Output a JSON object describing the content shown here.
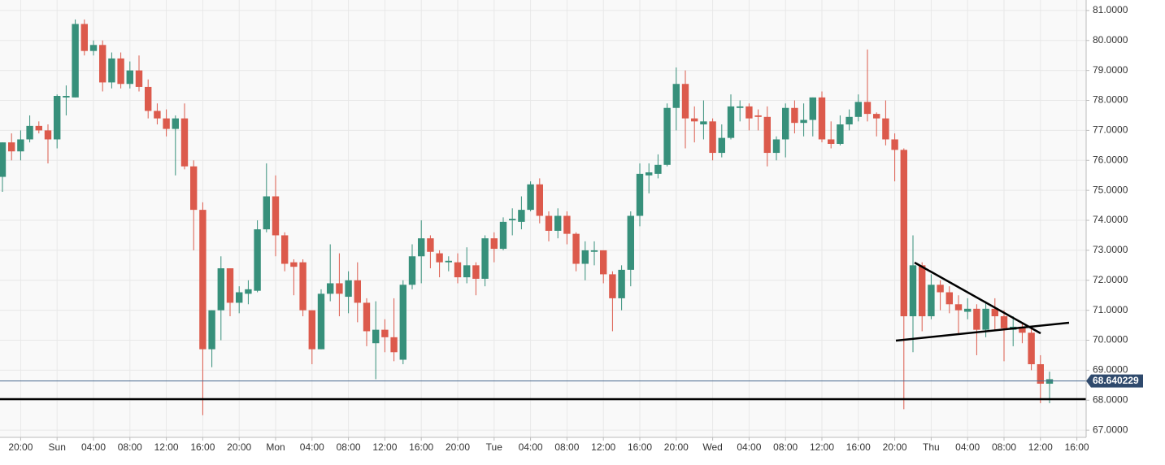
{
  "chart_data": {
    "type": "candlestick",
    "categories": [
      null,
      null,
      "20:00",
      null,
      null,
      null,
      "Sun",
      null,
      null,
      null,
      "04:00",
      null,
      null,
      null,
      "08:00",
      null,
      null,
      null,
      "12:00",
      null,
      null,
      null,
      "16:00",
      null,
      null,
      null,
      "20:00",
      null,
      null,
      null,
      "Mon",
      null,
      null,
      null,
      "04:00",
      null,
      null,
      null,
      "08:00",
      null,
      null,
      null,
      "12:00",
      null,
      null,
      null,
      "16:00",
      null,
      null,
      null,
      "20:00",
      null,
      null,
      null,
      "Tue",
      null,
      null,
      null,
      "04:00",
      null,
      null,
      null,
      "08:00",
      null,
      null,
      null,
      "12:00",
      null,
      null,
      null,
      "16:00",
      null,
      null,
      null,
      "20:00",
      null,
      null,
      null,
      "Wed",
      null,
      null,
      null,
      "04:00",
      null,
      null,
      null,
      "08:00",
      null,
      null,
      null,
      "12:00",
      null,
      null,
      null,
      "16:00",
      null,
      null,
      null,
      "20:00",
      null,
      null,
      null,
      "Thu",
      null,
      null,
      null,
      "04:00",
      null,
      null,
      null,
      "08:00",
      null,
      null,
      null,
      "12:00",
      null,
      null,
      null,
      "16:00"
    ],
    "open": [
      75.45,
      76.6,
      76.3,
      76.7,
      77.15,
      77.0,
      76.7,
      78.1,
      78.1,
      80.55,
      79.65,
      79.85,
      78.6,
      79.4,
      78.55,
      79.0,
      78.45,
      77.65,
      77.4,
      77.05,
      77.4,
      75.8,
      74.35,
      69.7,
      71.0,
      72.4,
      71.25,
      71.55,
      71.65,
      73.7,
      74.8,
      73.5,
      72.6,
      72.6,
      71.0,
      69.7,
      71.55,
      71.9,
      71.45,
      72.0,
      71.25,
      69.9,
      70.35,
      70.1,
      69.35,
      71.85,
      72.8,
      73.4,
      72.9,
      72.6,
      72.6,
      72.1,
      72.5,
      72.05,
      73.4,
      73.05,
      74.0,
      73.95,
      74.35,
      75.2,
      74.15,
      73.65,
      74.15,
      73.55,
      72.55,
      72.95,
      73.0,
      72.2,
      71.4,
      72.35,
      74.15,
      75.5,
      75.55,
      75.85,
      77.75,
      78.55,
      77.4,
      77.2,
      77.3,
      76.25,
      76.75,
      77.75,
      77.8,
      77.5,
      77.45,
      76.25,
      76.7,
      77.75,
      77.25,
      77.35,
      78.1,
      76.7,
      76.55,
      77.2,
      77.45,
      77.95,
      77.55,
      77.4,
      76.7,
      76.35,
      70.8,
      72.5,
      70.8,
      71.85,
      71.6,
      71.2,
      70.95,
      71.05,
      70.35,
      71.05,
      70.8,
      70.35,
      70.45,
      70.25,
      69.2,
      68.55,
      null,
      null,
      null
    ],
    "high": [
      76.6,
      76.9,
      77.0,
      77.5,
      77.3,
      77.2,
      78.2,
      78.5,
      80.7,
      80.7,
      80.0,
      80.0,
      79.6,
      79.6,
      79.3,
      79.5,
      78.7,
      77.9,
      77.7,
      77.5,
      77.9,
      76.0,
      74.6,
      71.0,
      72.8,
      72.4,
      71.8,
      72.0,
      74.0,
      75.9,
      75.5,
      73.6,
      72.7,
      72.7,
      71.0,
      71.7,
      73.2,
      72.9,
      72.3,
      72.6,
      71.4,
      71.3,
      70.7,
      71.4,
      72.0,
      73.2,
      74.0,
      73.5,
      73.0,
      72.8,
      72.9,
      73.1,
      72.6,
      73.5,
      73.6,
      74.1,
      74.4,
      74.8,
      75.3,
      75.4,
      74.3,
      74.4,
      74.3,
      73.6,
      73.3,
      73.3,
      73.0,
      72.3,
      72.5,
      74.3,
      75.9,
      75.9,
      76.2,
      77.9,
      79.1,
      79.0,
      77.8,
      78.0,
      77.4,
      77.2,
      78.2,
      78.0,
      77.9,
      77.7,
      77.8,
      76.8,
      77.9,
      78.0,
      77.9,
      78.1,
      78.3,
      77.3,
      77.5,
      77.7,
      78.2,
      79.7,
      77.6,
      78.0,
      76.9,
      76.4,
      73.5,
      72.6,
      72.2,
      72.0,
      71.8,
      71.5,
      71.4,
      71.2,
      71.3,
      71.4,
      71.0,
      70.8,
      70.6,
      70.4,
      69.5,
      68.95,
      null,
      null,
      null
    ],
    "low": [
      74.95,
      76.0,
      76.0,
      76.6,
      76.9,
      75.9,
      76.4,
      77.5,
      78.1,
      79.5,
      79.5,
      78.3,
      78.4,
      78.4,
      78.4,
      78.3,
      77.4,
      77.2,
      76.8,
      75.5,
      75.7,
      73.0,
      67.5,
      69.1,
      70.0,
      70.8,
      70.9,
      71.2,
      71.6,
      73.6,
      72.8,
      72.3,
      71.5,
      70.8,
      69.2,
      69.7,
      71.3,
      70.8,
      70.9,
      70.6,
      69.8,
      68.7,
      69.6,
      69.3,
      69.2,
      71.7,
      71.9,
      72.4,
      72.1,
      72.3,
      71.9,
      71.9,
      71.5,
      71.8,
      72.6,
      73.0,
      73.5,
      73.7,
      74.3,
      73.9,
      73.3,
      73.4,
      73.2,
      72.3,
      72.0,
      72.5,
      71.9,
      70.3,
      71.0,
      71.8,
      73.8,
      74.9,
      75.4,
      75.8,
      77.0,
      76.4,
      76.6,
      76.7,
      76.0,
      76.1,
      76.7,
      77.3,
      77.0,
      77.0,
      75.8,
      76.0,
      76.1,
      76.9,
      76.8,
      76.8,
      76.6,
      76.4,
      76.5,
      77.0,
      77.3,
      77.3,
      76.8,
      76.5,
      75.3,
      67.7,
      69.6,
      70.3,
      70.7,
      71.0,
      70.9,
      70.2,
      70.7,
      69.5,
      70.1,
      70.3,
      69.3,
      69.8,
      69.9,
      69.0,
      67.9,
      67.9,
      null,
      null,
      null
    ],
    "close": [
      76.6,
      76.3,
      76.7,
      77.15,
      77.0,
      76.7,
      78.15,
      78.15,
      80.55,
      79.65,
      79.85,
      78.6,
      79.4,
      78.55,
      79.0,
      78.45,
      77.65,
      77.4,
      77.05,
      77.4,
      75.8,
      74.35,
      69.7,
      71.0,
      72.4,
      71.25,
      71.6,
      71.7,
      73.7,
      74.8,
      73.5,
      72.55,
      72.45,
      71.0,
      69.7,
      71.55,
      71.9,
      71.55,
      72.0,
      71.25,
      70.3,
      70.35,
      70.1,
      69.6,
      71.85,
      72.8,
      73.4,
      72.95,
      72.6,
      72.65,
      72.1,
      72.5,
      72.05,
      73.4,
      73.05,
      73.95,
      74.05,
      74.35,
      75.2,
      74.15,
      73.65,
      74.15,
      73.55,
      72.55,
      73.0,
      73.0,
      72.2,
      71.4,
      72.35,
      74.15,
      75.55,
      75.6,
      75.85,
      77.75,
      78.55,
      77.4,
      77.3,
      77.3,
      76.25,
      76.75,
      77.8,
      77.8,
      77.4,
      77.45,
      76.25,
      76.7,
      77.75,
      77.25,
      77.35,
      78.1,
      76.7,
      76.55,
      77.2,
      77.45,
      77.95,
      77.55,
      77.4,
      76.7,
      76.35,
      70.8,
      72.5,
      70.8,
      71.85,
      71.6,
      71.2,
      71.0,
      71.05,
      70.35,
      71.05,
      70.8,
      70.4,
      70.45,
      70.25,
      69.2,
      68.55,
      68.7,
      null,
      null,
      null
    ],
    "up_color": "#37907b",
    "down_color": "#dc5a4c",
    "ylim": [
      66.76,
      81.35
    ],
    "yticks": [
      {
        "value": 67,
        "label": "67.0000"
      },
      {
        "value": 68,
        "label": "68.0000"
      },
      {
        "value": 69,
        "label": "69.0000"
      },
      {
        "value": 70,
        "label": "70.0000"
      },
      {
        "value": 71,
        "label": "71.0000"
      },
      {
        "value": 72,
        "label": "72.0000"
      },
      {
        "value": 73,
        "label": "73.0000"
      },
      {
        "value": 74,
        "label": "74.0000"
      },
      {
        "value": 75,
        "label": "75.0000"
      },
      {
        "value": 76,
        "label": "76.0000"
      },
      {
        "value": 77,
        "label": "77.0000"
      },
      {
        "value": 78,
        "label": "78.0000"
      },
      {
        "value": 79,
        "label": "79.0000"
      },
      {
        "value": 80,
        "label": "80.0000"
      },
      {
        "value": 81,
        "label": "81.0000"
      }
    ],
    "grid": true,
    "last_price": 68.640229
  }
}
